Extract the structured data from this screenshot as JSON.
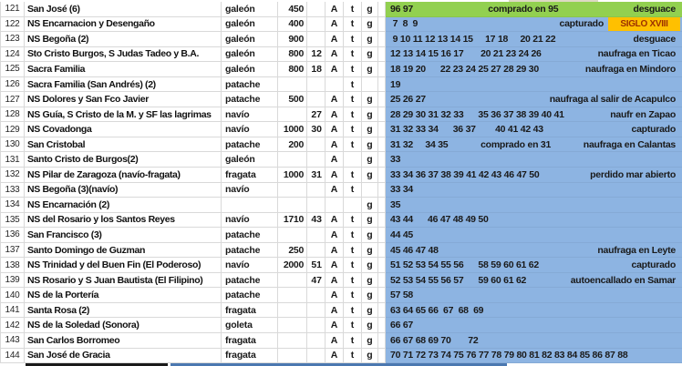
{
  "colors": {
    "green": "#92D050",
    "blue": "#8DB4E2",
    "orange": "#FFC000",
    "badge_text": "#9C3000",
    "red_name": "#FF0000",
    "gridline": "#D9D9D9",
    "bottom_black": "#1a1a1a",
    "bottom_blue": "#4B78B0",
    "top_tan": "#DDD9C3"
  },
  "rows": [
    {
      "n": "121",
      "name": "San José (6)",
      "red": false,
      "type": "galeón",
      "ton": "450",
      "n2": "",
      "a": "A",
      "t": "t",
      "g": "g",
      "fill": "green",
      "years": "96 97",
      "mid": "comprado en 95",
      "note": "desguace",
      "badge": ""
    },
    {
      "n": "122",
      "name": "NS Encarnacion y Desengaño",
      "red": false,
      "type": "galeón",
      "ton": "400",
      "n2": "",
      "a": "A",
      "t": "t",
      "g": "g",
      "fill": "blue",
      "years": " 7  8  9",
      "mid": "",
      "note": "capturado",
      "badge": "SIGLO XVIII"
    },
    {
      "n": "123",
      "name": "NS Begoña (2)",
      "red": false,
      "type": "galeón",
      "ton": "900",
      "n2": "",
      "a": "A",
      "t": "t",
      "g": "g",
      "fill": "blue",
      "years": " 9 10 11 12 13 14 15     17 18     20 21 22",
      "mid": "",
      "note": "desguace",
      "badge": ""
    },
    {
      "n": "124",
      "name": "Sto Cristo Burgos, S Judas Tadeo y B.A.",
      "red": false,
      "type": "galeón",
      "ton": "800",
      "n2": "12",
      "a": "A",
      "t": "t",
      "g": "g",
      "fill": "blue",
      "years": "12 13 14 15 16 17       20 21 23 24 26",
      "mid": "",
      "note": "naufraga en Ticao",
      "badge": ""
    },
    {
      "n": "125",
      "name": "Sacra Familia",
      "red": false,
      "type": "galeón",
      "ton": "800",
      "n2": "18",
      "a": "A",
      "t": "t",
      "g": "g",
      "fill": "blue",
      "years": "18 19 20      22 23 24 25 27 28 29 30",
      "mid": "",
      "note": "naufraga en Mindoro",
      "badge": ""
    },
    {
      "n": "126",
      "name": "Sacra Familia (San Andrés) (2)",
      "red": true,
      "type": "patache",
      "ton": "",
      "n2": "",
      "a": "",
      "t": "t",
      "g": "",
      "fill": "blue",
      "years": "19",
      "mid": "",
      "note": "",
      "badge": ""
    },
    {
      "n": "127",
      "name": "NS Dolores y San Fco Javier",
      "red": false,
      "type": "patache",
      "ton": "500",
      "n2": "",
      "a": "A",
      "t": "t",
      "g": "g",
      "fill": "blue",
      "years": "25 26 27",
      "mid": "",
      "note": "naufraga al salir de Acapulco",
      "badge": ""
    },
    {
      "n": "128",
      "name": "NS Guía, S Cristo de la M. y SF  las lagrimas",
      "red": false,
      "type": "navío",
      "ton": "",
      "n2": "27",
      "a": "A",
      "t": "t",
      "g": "g",
      "fill": "blue",
      "years": "28 29 30 31 32 33      35 36 37 38 39 40 41",
      "mid": "",
      "note": "naufr en Zapao",
      "badge": ""
    },
    {
      "n": "129",
      "name": "NS Covadonga",
      "red": false,
      "type": "navío",
      "ton": "1000",
      "n2": "30",
      "a": "A",
      "t": "t",
      "g": "g",
      "fill": "blue",
      "years": "31 32 33 34      36 37        40 41 42 43",
      "mid": "",
      "note": "capturado",
      "badge": ""
    },
    {
      "n": "130",
      "name": "San Cristobal",
      "red": false,
      "type": "patache",
      "ton": "200",
      "n2": "",
      "a": "A",
      "t": "t",
      "g": "g",
      "fill": "blue",
      "years": "31 32     34 35",
      "mid": "comprado en 31",
      "note": "naufraga en Calantas",
      "badge": ""
    },
    {
      "n": "131",
      "name": "Santo Cristo de Burgos(2)",
      "red": true,
      "type": "galeón",
      "ton": "",
      "n2": "",
      "a": "A",
      "t": "",
      "g": "g",
      "fill": "blue",
      "years": "33",
      "mid": "",
      "note": "",
      "badge": ""
    },
    {
      "n": "132",
      "name": "NS Pilar de Zaragoza (navío-fragata)",
      "red": false,
      "type": "fragata",
      "ton": "1000",
      "n2": "31",
      "a": "A",
      "t": "t",
      "g": "g",
      "fill": "blue",
      "years": "33 34 36 37 38 39 41 42 43 46 47 50",
      "mid": "",
      "note": "perdido mar abierto",
      "badge": ""
    },
    {
      "n": "133",
      "name": "NS Begoña (3)(navío)",
      "red": true,
      "type": "navío",
      "ton": "",
      "n2": "",
      "a": "A",
      "t": "t",
      "g": "",
      "fill": "blue",
      "years": "33 34",
      "mid": "",
      "note": "",
      "badge": ""
    },
    {
      "n": "134",
      "name": "NS Encarnación (2)",
      "red": true,
      "type": "",
      "ton": "",
      "n2": "",
      "a": "",
      "t": "",
      "g": "g",
      "fill": "blue",
      "years": "35",
      "mid": "",
      "note": "",
      "badge": ""
    },
    {
      "n": "135",
      "name": "NS del Rosario y los Santos Reyes",
      "red": false,
      "type": "navío",
      "ton": "1710",
      "n2": "43",
      "a": "A",
      "t": "t",
      "g": "g",
      "fill": "blue",
      "years": "43 44      46 47 48 49 50",
      "mid": "",
      "note": "",
      "badge": ""
    },
    {
      "n": "136",
      "name": "San Francisco (3)",
      "red": false,
      "type": "patache",
      "ton": "",
      "n2": "",
      "a": "A",
      "t": "t",
      "g": "g",
      "fill": "blue",
      "years": "44 45",
      "mid": "",
      "note": "",
      "badge": ""
    },
    {
      "n": "137",
      "name": "Santo Domingo de Guzman",
      "red": false,
      "type": "patache",
      "ton": "250",
      "n2": "",
      "a": "A",
      "t": "t",
      "g": "g",
      "fill": "blue",
      "years": "45 46 47 48",
      "mid": "",
      "note": "naufraga en Leyte",
      "badge": ""
    },
    {
      "n": "138",
      "name": "NS Trinidad y del Buen Fin (El Poderoso)",
      "red": false,
      "type": "navío",
      "ton": "2000",
      "n2": "51",
      "a": "A",
      "t": "t",
      "g": "g",
      "fill": "blue",
      "years": "51 52 53 54 55 56      58 59 60 61 62",
      "mid": "",
      "note": "capturado",
      "badge": ""
    },
    {
      "n": "139",
      "name": "NS Rosario y S Juan Bautista (El Filipino)",
      "red": false,
      "type": "patache",
      "ton": "",
      "n2": "47",
      "a": "A",
      "t": "t",
      "g": "g",
      "fill": "blue",
      "years": "52 53 54 55 56 57      59 60 61 62",
      "mid": "",
      "note": "autoencallado en Samar",
      "badge": ""
    },
    {
      "n": "140",
      "name": "NS de la Portería",
      "red": false,
      "type": "patache",
      "ton": "",
      "n2": "",
      "a": "A",
      "t": "t",
      "g": "g",
      "fill": "blue",
      "years": "57 58",
      "mid": "",
      "note": "",
      "badge": ""
    },
    {
      "n": "141",
      "name": "Santa Rosa (2)",
      "red": false,
      "type": "fragata",
      "ton": "",
      "n2": "",
      "a": "A",
      "t": "t",
      "g": "g",
      "fill": "blue",
      "years": "63 64 65 66  67  68  69",
      "mid": "",
      "note": "",
      "badge": ""
    },
    {
      "n": "142",
      "name": "NS de la Soledad (Sonora)",
      "red": false,
      "type": "goleta",
      "ton": "",
      "n2": "",
      "a": "A",
      "t": "t",
      "g": "g",
      "fill": "blue",
      "years": "66 67",
      "mid": "",
      "note": "",
      "badge": ""
    },
    {
      "n": "143",
      "name": "San Carlos Borromeo",
      "red": false,
      "type": "fragata",
      "ton": "",
      "n2": "",
      "a": "A",
      "t": "t",
      "g": "g",
      "fill": "blue",
      "years": "66 67 68 69 70       72",
      "mid": "",
      "note": "",
      "badge": ""
    },
    {
      "n": "144",
      "name": "San José de Gracia",
      "red": false,
      "type": "fragata",
      "ton": "",
      "n2": "",
      "a": "A",
      "t": "t",
      "g": "g",
      "fill": "blue",
      "years": "70 71 72 73 74 75 76 77 78 79 80 81 82 83 84 85 86 87 88",
      "mid": "",
      "note": "",
      "badge": ""
    }
  ]
}
